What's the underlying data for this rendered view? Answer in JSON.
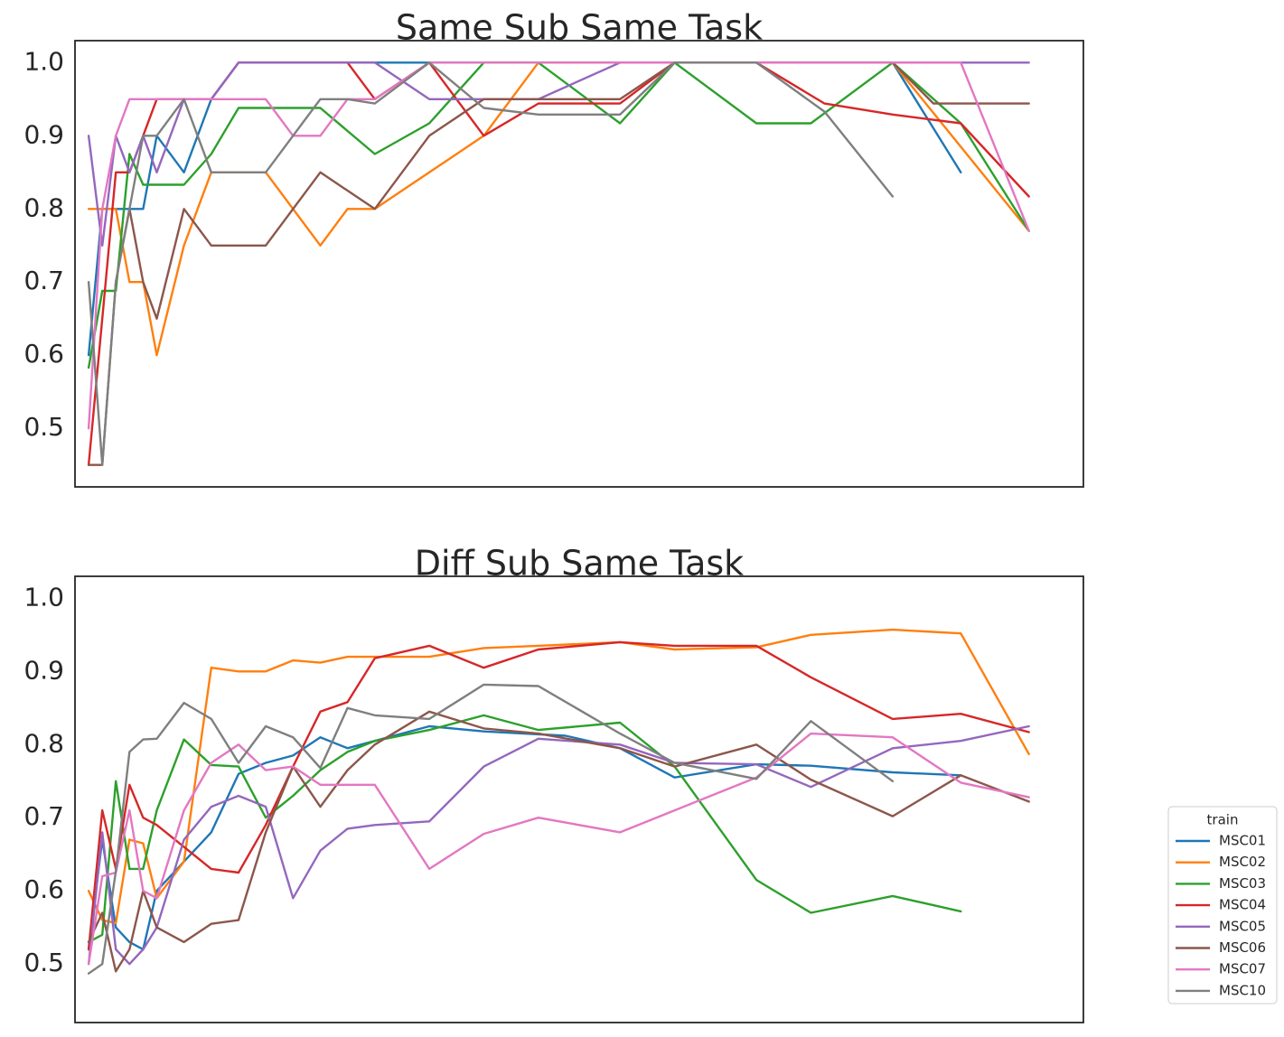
{
  "chart_data": [
    {
      "type": "line",
      "title": "Same Sub Same Task",
      "xlabel": "",
      "ylabel": "",
      "ylim": [
        0.42,
        1.03
      ],
      "xlim": [
        -0.5,
        36.5
      ],
      "yticks": [
        0.5,
        0.6,
        0.7,
        0.8,
        0.9,
        1.0
      ],
      "ytick_labels": [
        "0.5",
        "0.6",
        "0.7",
        "0.8",
        "0.9",
        "1.0"
      ],
      "grid": false,
      "series": [
        {
          "name": "MSC01",
          "color": "#1f77b4",
          "x": [
            0,
            0.5,
            1,
            1.5,
            2,
            2.5,
            3.5,
            4.5,
            5.5,
            6.5,
            8.5,
            10.5,
            12.5,
            17.5,
            19.5,
            21.5,
            23.5,
            25.5,
            29.5,
            32
          ],
          "y": [
            0.6,
            0.8,
            0.8,
            0.8,
            0.8,
            0.9,
            0.85,
            0.95,
            1.0,
            1.0,
            1.0,
            1.0,
            1.0,
            1.0,
            1.0,
            1.0,
            1.0,
            1.0,
            1.0,
            0.85
          ]
        },
        {
          "name": "MSC02",
          "color": "#ff7f0e",
          "x": [
            0,
            0.5,
            1,
            1.5,
            2,
            2.5,
            3.5,
            4.5,
            5.5,
            6.5,
            8.5,
            9.5,
            10.5,
            12.5,
            14.5,
            16.5,
            21.5,
            25.5,
            29.5,
            34.5
          ],
          "y": [
            0.8,
            0.8,
            0.8,
            0.7,
            0.7,
            0.6,
            0.75,
            0.85,
            0.85,
            0.85,
            0.75,
            0.8,
            0.8,
            0.85,
            0.9,
            1.0,
            1.0,
            1.0,
            1.0,
            0.77
          ]
        },
        {
          "name": "MSC03",
          "color": "#2ca02c",
          "x": [
            0,
            0.5,
            1,
            1.5,
            2,
            2.5,
            3.5,
            4.5,
            5.5,
            6.5,
            8.5,
            10.5,
            12.5,
            14.5,
            16.5,
            19.5,
            21.5,
            24.5,
            26.5,
            29.5,
            32,
            34.5
          ],
          "y": [
            0.583,
            0.688,
            0.688,
            0.875,
            0.833,
            0.833,
            0.833,
            0.875,
            0.938,
            0.938,
            0.938,
            0.875,
            0.917,
            1.0,
            1.0,
            0.917,
            1.0,
            0.917,
            0.917,
            1.0,
            0.917,
            0.77
          ]
        },
        {
          "name": "MSC04",
          "color": "#d62728",
          "x": [
            0,
            0.5,
            1,
            1.5,
            2,
            2.5,
            3.5,
            4.5,
            5.5,
            6.5,
            8.5,
            9.5,
            10.5,
            12.5,
            14.5,
            16.5,
            17.5,
            19.5,
            21.5,
            24.5,
            27,
            29.5,
            32,
            34.5
          ],
          "y": [
            0.45,
            0.65,
            0.85,
            0.85,
            0.9,
            0.95,
            0.95,
            0.95,
            1.0,
            1.0,
            1.0,
            1.0,
            0.95,
            1.0,
            0.9,
            0.944,
            0.944,
            0.944,
            1.0,
            1.0,
            0.944,
            0.929,
            0.917,
            0.817
          ]
        },
        {
          "name": "MSC05",
          "color": "#9467bd",
          "x": [
            0,
            0.5,
            1,
            1.5,
            2,
            2.5,
            3.5,
            4.5,
            5.5,
            6.5,
            8.5,
            10.5,
            12.5,
            14.5,
            16.5,
            19.5,
            24.5,
            29.5,
            34.5
          ],
          "y": [
            0.9,
            0.75,
            0.9,
            0.85,
            0.9,
            0.85,
            0.95,
            0.95,
            1.0,
            1.0,
            1.0,
            1.0,
            0.95,
            0.95,
            0.95,
            1.0,
            1.0,
            1.0,
            1.0
          ]
        },
        {
          "name": "MSC06",
          "color": "#8c564b",
          "x": [
            0,
            0.5,
            1,
            1.5,
            2,
            2.5,
            3.5,
            4.5,
            5.5,
            6.5,
            8.5,
            10.5,
            12.5,
            14.5,
            16.5,
            19.5,
            21.5,
            24.5,
            26.5,
            29.5,
            31,
            34.5
          ],
          "y": [
            0.45,
            0.45,
            0.7,
            0.8,
            0.7,
            0.65,
            0.8,
            0.75,
            0.75,
            0.75,
            0.85,
            0.8,
            0.9,
            0.95,
            0.95,
            0.95,
            1.0,
            1.0,
            1.0,
            1.0,
            0.944,
            0.944
          ]
        },
        {
          "name": "MSC07",
          "color": "#e377c2",
          "x": [
            0,
            0.5,
            1,
            1.5,
            2,
            2.5,
            3.5,
            4.5,
            5.5,
            6.5,
            7.5,
            8.5,
            9.5,
            10.5,
            12.5,
            14.5,
            19.5,
            24.5,
            29.5,
            32,
            34.5
          ],
          "y": [
            0.5,
            0.8,
            0.9,
            0.95,
            0.95,
            0.95,
            0.95,
            0.95,
            0.95,
            0.95,
            0.9,
            0.9,
            0.95,
            0.95,
            1.0,
            1.0,
            1.0,
            1.0,
            1.0,
            1.0,
            0.77
          ]
        },
        {
          "name": "MSC10",
          "color": "#7f7f7f",
          "x": [
            0,
            0.5,
            1,
            1.5,
            2,
            2.5,
            3.5,
            4.5,
            5.5,
            6.5,
            8.5,
            9.5,
            10.5,
            12.5,
            14.5,
            16.5,
            17.5,
            19.5,
            21.5,
            24.5,
            27,
            29.5
          ],
          "y": [
            0.7,
            0.45,
            0.7,
            0.8,
            0.9,
            0.9,
            0.95,
            0.85,
            0.85,
            0.85,
            0.95,
            0.95,
            0.944,
            1.0,
            0.938,
            0.929,
            0.929,
            0.929,
            1.0,
            1.0,
            0.933,
            0.817
          ]
        }
      ]
    },
    {
      "type": "line",
      "title": "Diff Sub Same Task",
      "xlabel": "",
      "ylabel": "",
      "ylim": [
        0.42,
        1.03
      ],
      "xlim": [
        -0.5,
        36.5
      ],
      "yticks": [
        0.5,
        0.6,
        0.7,
        0.8,
        0.9,
        1.0
      ],
      "ytick_labels": [
        "0.5",
        "0.6",
        "0.7",
        "0.8",
        "0.9",
        "1.0"
      ],
      "grid": false,
      "series": [
        {
          "name": "MSC01",
          "color": "#1f77b4",
          "x": [
            0,
            0.5,
            1,
            1.5,
            2,
            2.5,
            3.5,
            4.5,
            5.5,
            6.5,
            7.5,
            8.5,
            9.5,
            10.5,
            12.5,
            14.5,
            17.5,
            19.5,
            21.5,
            24.5,
            26.5,
            29.5,
            32
          ],
          "y": [
            0.52,
            0.67,
            0.55,
            0.53,
            0.52,
            0.6,
            0.64,
            0.68,
            0.76,
            0.775,
            0.785,
            0.81,
            0.795,
            0.805,
            0.825,
            0.818,
            0.812,
            0.795,
            0.755,
            0.773,
            0.771,
            0.762,
            0.758
          ]
        },
        {
          "name": "MSC02",
          "color": "#ff7f0e",
          "x": [
            0,
            0.5,
            1,
            1.5,
            2,
            2.5,
            3.5,
            4.5,
            5.5,
            6.5,
            7.5,
            8.5,
            9.5,
            10.5,
            12.5,
            14.5,
            16.5,
            19.5,
            21.5,
            24.5,
            26.5,
            29.5,
            32,
            34.5
          ],
          "y": [
            0.6,
            0.56,
            0.556,
            0.67,
            0.665,
            0.59,
            0.64,
            0.905,
            0.9,
            0.9,
            0.915,
            0.912,
            0.92,
            0.92,
            0.92,
            0.932,
            0.935,
            0.94,
            0.93,
            0.933,
            0.95,
            0.957,
            0.952,
            0.787
          ]
        },
        {
          "name": "MSC03",
          "color": "#2ca02c",
          "x": [
            0,
            0.5,
            1,
            1.5,
            2,
            2.5,
            3.5,
            4.5,
            5.5,
            6.5,
            7.5,
            8.5,
            9.5,
            10.5,
            12.5,
            14.5,
            16.5,
            19.5,
            21.5,
            24.5,
            26.5,
            29.5,
            32
          ],
          "y": [
            0.53,
            0.54,
            0.75,
            0.63,
            0.63,
            0.71,
            0.807,
            0.772,
            0.77,
            0.7,
            0.73,
            0.765,
            0.79,
            0.805,
            0.82,
            0.84,
            0.82,
            0.83,
            0.77,
            0.615,
            0.57,
            0.593,
            0.572
          ]
        },
        {
          "name": "MSC04",
          "color": "#d62728",
          "x": [
            0,
            0.5,
            1,
            1.5,
            2,
            2.5,
            3.5,
            4.5,
            5.5,
            6.5,
            7.5,
            8.5,
            9.5,
            10.5,
            12.5,
            14.5,
            16.5,
            19.5,
            21.5,
            24.5,
            26.5,
            29.5,
            32,
            34.5
          ],
          "y": [
            0.52,
            0.71,
            0.63,
            0.745,
            0.7,
            0.69,
            0.66,
            0.63,
            0.625,
            0.69,
            0.77,
            0.845,
            0.858,
            0.918,
            0.935,
            0.905,
            0.93,
            0.94,
            0.935,
            0.935,
            0.892,
            0.835,
            0.842,
            0.817
          ]
        },
        {
          "name": "MSC05",
          "color": "#9467bd",
          "x": [
            0,
            0.5,
            1,
            1.5,
            2,
            2.5,
            3.5,
            4.5,
            5.5,
            6.5,
            7.5,
            8.5,
            9.5,
            10.5,
            12.5,
            14.5,
            16.5,
            19.5,
            21.5,
            24.5,
            26.5,
            29.5,
            32,
            34.5
          ],
          "y": [
            0.5,
            0.68,
            0.52,
            0.5,
            0.52,
            0.55,
            0.67,
            0.715,
            0.73,
            0.715,
            0.59,
            0.655,
            0.685,
            0.69,
            0.695,
            0.77,
            0.808,
            0.8,
            0.775,
            0.773,
            0.742,
            0.795,
            0.805,
            0.825
          ]
        },
        {
          "name": "MSC06",
          "color": "#8c564b",
          "x": [
            0,
            0.5,
            1,
            1.5,
            2,
            2.5,
            3.5,
            4.5,
            5.5,
            6.5,
            7.5,
            8.5,
            9.5,
            10.5,
            12.5,
            14.5,
            16.5,
            19.5,
            21.5,
            24.5,
            26.5,
            29.5,
            32,
            34.5
          ],
          "y": [
            0.53,
            0.57,
            0.49,
            0.52,
            0.6,
            0.55,
            0.53,
            0.555,
            0.56,
            0.68,
            0.77,
            0.715,
            0.765,
            0.8,
            0.845,
            0.822,
            0.815,
            0.795,
            0.77,
            0.8,
            0.752,
            0.702,
            0.758,
            0.722
          ]
        },
        {
          "name": "MSC07",
          "color": "#e377c2",
          "x": [
            0,
            0.5,
            1,
            1.5,
            2,
            2.5,
            3.5,
            4.5,
            5.5,
            6.5,
            7.5,
            8.5,
            9.5,
            10.5,
            12.5,
            14.5,
            16.5,
            19.5,
            21.5,
            24.5,
            26.5,
            29.5,
            32,
            34.5
          ],
          "y": [
            0.5,
            0.62,
            0.625,
            0.71,
            0.6,
            0.59,
            0.71,
            0.775,
            0.8,
            0.765,
            0.77,
            0.745,
            0.745,
            0.745,
            0.63,
            0.678,
            0.7,
            0.68,
            0.71,
            0.755,
            0.815,
            0.81,
            0.748,
            0.728
          ]
        },
        {
          "name": "MSC10",
          "color": "#7f7f7f",
          "x": [
            0,
            0.5,
            1,
            1.5,
            2,
            2.5,
            3.5,
            4.5,
            5.5,
            6.5,
            7.5,
            8.5,
            9.5,
            10.5,
            12.5,
            14.5,
            16.5,
            19.5,
            21.5,
            24.5,
            26.5,
            29.5
          ],
          "y": [
            0.487,
            0.5,
            0.627,
            0.79,
            0.807,
            0.808,
            0.857,
            0.835,
            0.775,
            0.825,
            0.81,
            0.768,
            0.85,
            0.84,
            0.835,
            0.882,
            0.88,
            0.815,
            0.775,
            0.753,
            0.832,
            0.75
          ]
        }
      ]
    }
  ],
  "legend": {
    "title": "train",
    "placement": "lower-right, outside",
    "entries": [
      "MSC01",
      "MSC02",
      "MSC03",
      "MSC04",
      "MSC05",
      "MSC06",
      "MSC07",
      "MSC10"
    ]
  }
}
